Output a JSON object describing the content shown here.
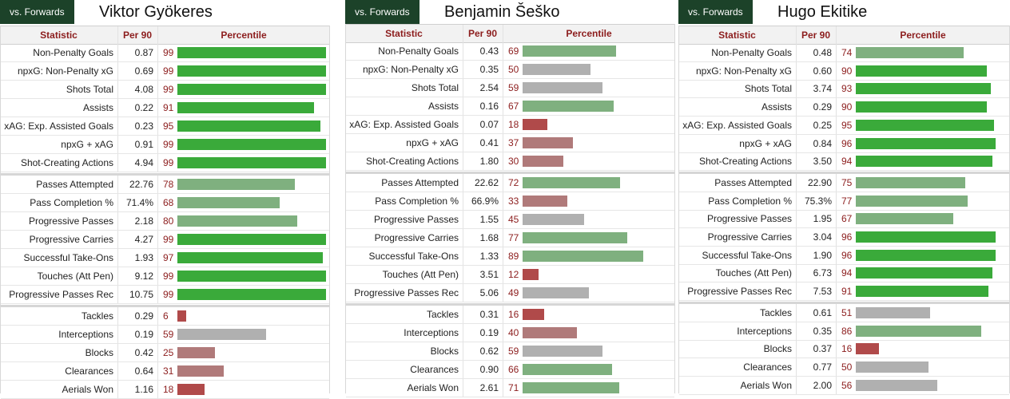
{
  "headers": {
    "statistic": "Statistic",
    "per90": "Per 90",
    "percentile": "Percentile"
  },
  "colors": {
    "elite": "#3aaa3a",
    "good": "#7fb07f",
    "average": "#b0b0b0",
    "below": "#b07a7a",
    "poor": "#b04a4a",
    "tag_bg": "#1c4229",
    "header_text": "#8c1d1d"
  },
  "players": [
    {
      "tag": "vs. Forwards",
      "name": "Viktor Gyökeres",
      "groups": [
        [
          {
            "stat": "Non-Penalty Goals",
            "per90": "0.87",
            "pct": 99
          },
          {
            "stat": "npxG: Non-Penalty xG",
            "per90": "0.69",
            "pct": 99
          },
          {
            "stat": "Shots Total",
            "per90": "4.08",
            "pct": 99
          },
          {
            "stat": "Assists",
            "per90": "0.22",
            "pct": 91
          },
          {
            "stat": "xAG: Exp. Assisted Goals",
            "per90": "0.23",
            "pct": 95
          },
          {
            "stat": "npxG + xAG",
            "per90": "0.91",
            "pct": 99
          },
          {
            "stat": "Shot-Creating Actions",
            "per90": "4.94",
            "pct": 99
          }
        ],
        [
          {
            "stat": "Passes Attempted",
            "per90": "22.76",
            "pct": 78
          },
          {
            "stat": "Pass Completion %",
            "per90": "71.4%",
            "pct": 68
          },
          {
            "stat": "Progressive Passes",
            "per90": "2.18",
            "pct": 80
          },
          {
            "stat": "Progressive Carries",
            "per90": "4.27",
            "pct": 99
          },
          {
            "stat": "Successful Take-Ons",
            "per90": "1.93",
            "pct": 97
          },
          {
            "stat": "Touches (Att Pen)",
            "per90": "9.12",
            "pct": 99
          },
          {
            "stat": "Progressive Passes Rec",
            "per90": "10.75",
            "pct": 99
          }
        ],
        [
          {
            "stat": "Tackles",
            "per90": "0.29",
            "pct": 6
          },
          {
            "stat": "Interceptions",
            "per90": "0.19",
            "pct": 59
          },
          {
            "stat": "Blocks",
            "per90": "0.42",
            "pct": 25
          },
          {
            "stat": "Clearances",
            "per90": "0.64",
            "pct": 31
          },
          {
            "stat": "Aerials Won",
            "per90": "1.16",
            "pct": 18
          }
        ]
      ]
    },
    {
      "tag": "vs. Forwards",
      "name": "Benjamin Šeško",
      "groups": [
        [
          {
            "stat": "Non-Penalty Goals",
            "per90": "0.43",
            "pct": 69
          },
          {
            "stat": "npxG: Non-Penalty xG",
            "per90": "0.35",
            "pct": 50
          },
          {
            "stat": "Shots Total",
            "per90": "2.54",
            "pct": 59
          },
          {
            "stat": "Assists",
            "per90": "0.16",
            "pct": 67
          },
          {
            "stat": "xAG: Exp. Assisted Goals",
            "per90": "0.07",
            "pct": 18
          },
          {
            "stat": "npxG + xAG",
            "per90": "0.41",
            "pct": 37
          },
          {
            "stat": "Shot-Creating Actions",
            "per90": "1.80",
            "pct": 30
          }
        ],
        [
          {
            "stat": "Passes Attempted",
            "per90": "22.62",
            "pct": 72
          },
          {
            "stat": "Pass Completion %",
            "per90": "66.9%",
            "pct": 33
          },
          {
            "stat": "Progressive Passes",
            "per90": "1.55",
            "pct": 45
          },
          {
            "stat": "Progressive Carries",
            "per90": "1.68",
            "pct": 77
          },
          {
            "stat": "Successful Take-Ons",
            "per90": "1.33",
            "pct": 89
          },
          {
            "stat": "Touches (Att Pen)",
            "per90": "3.51",
            "pct": 12
          },
          {
            "stat": "Progressive Passes Rec",
            "per90": "5.06",
            "pct": 49
          }
        ],
        [
          {
            "stat": "Tackles",
            "per90": "0.31",
            "pct": 16
          },
          {
            "stat": "Interceptions",
            "per90": "0.19",
            "pct": 40
          },
          {
            "stat": "Blocks",
            "per90": "0.62",
            "pct": 59
          },
          {
            "stat": "Clearances",
            "per90": "0.90",
            "pct": 66
          },
          {
            "stat": "Aerials Won",
            "per90": "2.61",
            "pct": 71
          }
        ]
      ]
    },
    {
      "tag": "vs. Forwards",
      "name": "Hugo Ekitike",
      "groups": [
        [
          {
            "stat": "Non-Penalty Goals",
            "per90": "0.48",
            "pct": 74
          },
          {
            "stat": "npxG: Non-Penalty xG",
            "per90": "0.60",
            "pct": 90
          },
          {
            "stat": "Shots Total",
            "per90": "3.74",
            "pct": 93
          },
          {
            "stat": "Assists",
            "per90": "0.29",
            "pct": 90
          },
          {
            "stat": "xAG: Exp. Assisted Goals",
            "per90": "0.25",
            "pct": 95
          },
          {
            "stat": "npxG + xAG",
            "per90": "0.84",
            "pct": 96
          },
          {
            "stat": "Shot-Creating Actions",
            "per90": "3.50",
            "pct": 94
          }
        ],
        [
          {
            "stat": "Passes Attempted",
            "per90": "22.90",
            "pct": 75
          },
          {
            "stat": "Pass Completion %",
            "per90": "75.3%",
            "pct": 77
          },
          {
            "stat": "Progressive Passes",
            "per90": "1.95",
            "pct": 67
          },
          {
            "stat": "Progressive Carries",
            "per90": "3.04",
            "pct": 96
          },
          {
            "stat": "Successful Take-Ons",
            "per90": "1.90",
            "pct": 96
          },
          {
            "stat": "Touches (Att Pen)",
            "per90": "6.73",
            "pct": 94
          },
          {
            "stat": "Progressive Passes Rec",
            "per90": "7.53",
            "pct": 91
          }
        ],
        [
          {
            "stat": "Tackles",
            "per90": "0.61",
            "pct": 51
          },
          {
            "stat": "Interceptions",
            "per90": "0.35",
            "pct": 86
          },
          {
            "stat": "Blocks",
            "per90": "0.37",
            "pct": 16
          },
          {
            "stat": "Clearances",
            "per90": "0.77",
            "pct": 50
          },
          {
            "stat": "Aerials Won",
            "per90": "2.00",
            "pct": 56
          }
        ]
      ]
    }
  ]
}
